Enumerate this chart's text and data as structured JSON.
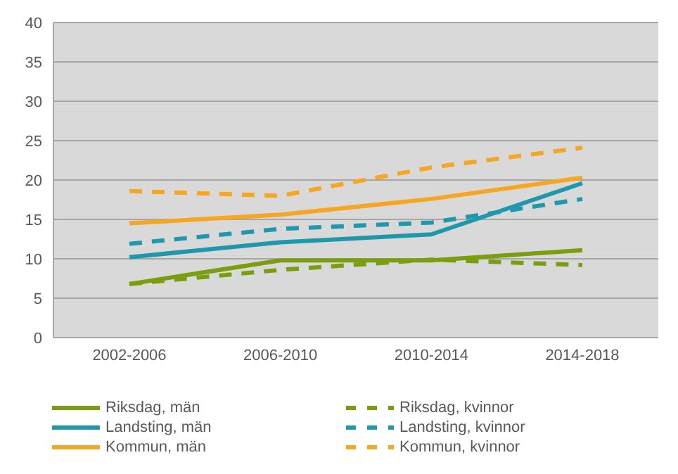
{
  "chart_data": {
    "type": "line",
    "categories": [
      "2002-2006",
      "2006-2010",
      "2010-2014",
      "2014-2018"
    ],
    "series": [
      {
        "name": "Riksdag, män",
        "color": "#7a9e0f",
        "line_style": "solid",
        "values": [
          6.8,
          9.8,
          9.8,
          11.1
        ]
      },
      {
        "name": "Riksdag, kvinnor",
        "color": "#7a9e0f",
        "line_style": "dashed",
        "values": [
          6.8,
          8.6,
          9.9,
          9.2
        ]
      },
      {
        "name": "Landsting, män",
        "color": "#1f98ab",
        "line_style": "solid",
        "values": [
          10.2,
          12.1,
          13.1,
          19.6
        ]
      },
      {
        "name": "Landsting, kvinnor",
        "color": "#1f98ab",
        "line_style": "dashed",
        "values": [
          11.9,
          13.8,
          14.6,
          17.6
        ]
      },
      {
        "name": "Kommun, män",
        "color": "#f5a623",
        "line_style": "solid",
        "values": [
          14.5,
          15.6,
          17.6,
          20.3
        ]
      },
      {
        "name": "Kommun, kvinnor",
        "color": "#f5a623",
        "line_style": "dashed",
        "values": [
          18.6,
          18.0,
          21.6,
          24.1
        ]
      }
    ],
    "ylim": [
      0,
      40
    ],
    "yticks": [
      0,
      5,
      10,
      15,
      20,
      25,
      30,
      35,
      40
    ],
    "grid": "y",
    "legend": "bottom",
    "marker": "none"
  }
}
